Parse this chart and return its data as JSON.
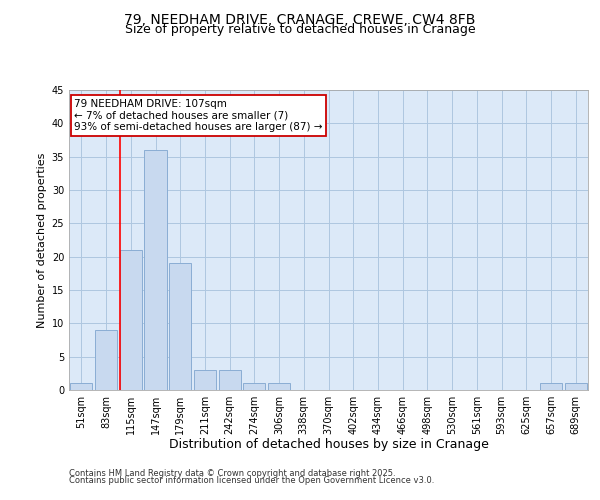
{
  "title1": "79, NEEDHAM DRIVE, CRANAGE, CREWE, CW4 8FB",
  "title2": "Size of property relative to detached houses in Cranage",
  "xlabel": "Distribution of detached houses by size in Cranage",
  "ylabel": "Number of detached properties",
  "bins": [
    "51sqm",
    "83sqm",
    "115sqm",
    "147sqm",
    "179sqm",
    "211sqm",
    "242sqm",
    "274sqm",
    "306sqm",
    "338sqm",
    "370sqm",
    "402sqm",
    "434sqm",
    "466sqm",
    "498sqm",
    "530sqm",
    "561sqm",
    "593sqm",
    "625sqm",
    "657sqm",
    "689sqm"
  ],
  "values": [
    1,
    9,
    21,
    36,
    19,
    3,
    3,
    1,
    1,
    0,
    0,
    0,
    0,
    0,
    0,
    0,
    0,
    0,
    0,
    1,
    1
  ],
  "bar_color": "#c8d9ef",
  "bar_edge_color": "#8aadd4",
  "red_line_x": 1.55,
  "annotation_text": "79 NEEDHAM DRIVE: 107sqm\n← 7% of detached houses are smaller (7)\n93% of semi-detached houses are larger (87) →",
  "annotation_box_color": "#ffffff",
  "annotation_box_edge": "#cc0000",
  "ylim": [
    0,
    45
  ],
  "yticks": [
    0,
    5,
    10,
    15,
    20,
    25,
    30,
    35,
    40,
    45
  ],
  "footnote1": "Contains HM Land Registry data © Crown copyright and database right 2025.",
  "footnote2": "Contains public sector information licensed under the Open Government Licence v3.0.",
  "bg_color": "#ffffff",
  "plot_bg_color": "#dce9f8",
  "grid_color": "#aec6e0",
  "title_fontsize": 10,
  "subtitle_fontsize": 9,
  "xlabel_fontsize": 9,
  "ylabel_fontsize": 8,
  "tick_fontsize": 7,
  "annot_fontsize": 7.5,
  "footnote_fontsize": 6
}
